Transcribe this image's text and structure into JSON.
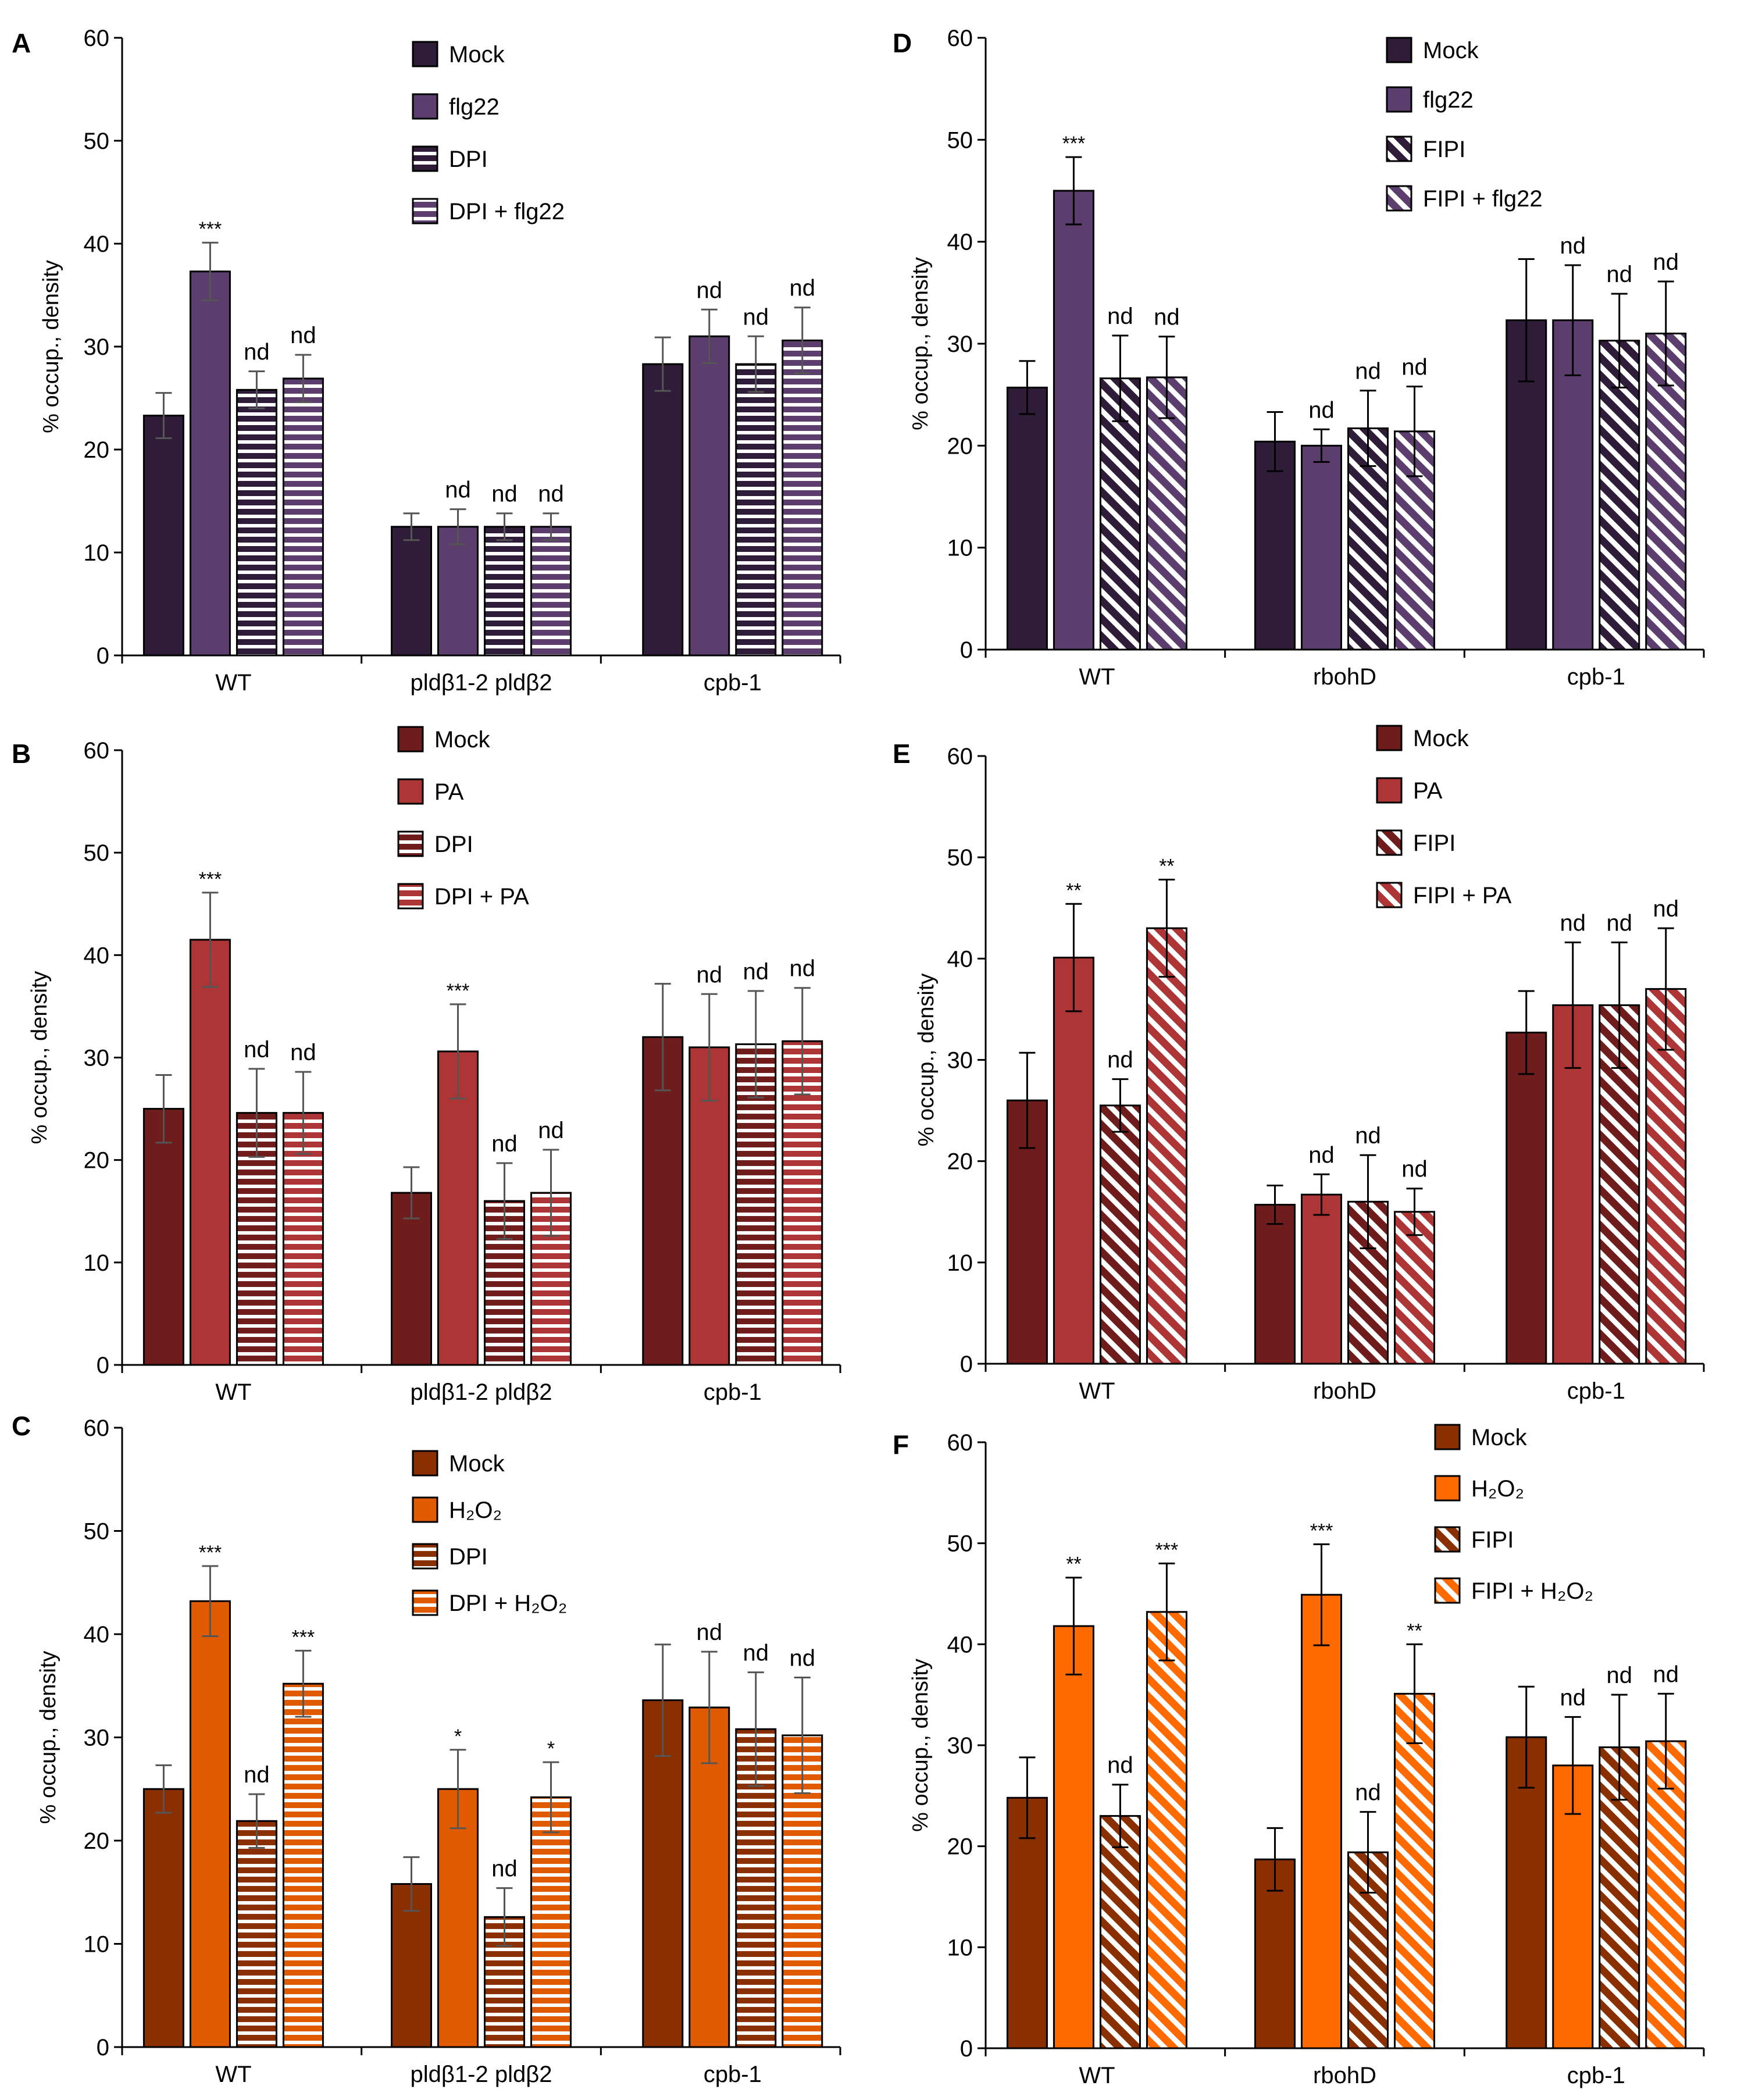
{
  "figure_caption_visible": false,
  "chart_data": [
    {
      "panel": "A",
      "type": "bar",
      "ylabel": "% occup., density",
      "ylim": [
        0,
        60
      ],
      "yticks": [
        0,
        10,
        20,
        30,
        40,
        50,
        60
      ],
      "categories": [
        "WT",
        "pldβ1-2 pldβ2",
        "cpb-1"
      ],
      "series": [
        {
          "name": "Mock",
          "values": [
            23.3,
            12.5,
            28.3
          ],
          "errors": [
            2.2,
            1.3,
            2.6
          ],
          "marks": [
            "",
            "",
            ""
          ],
          "color": "#2e1c38",
          "pattern": "solid"
        },
        {
          "name": "flg22",
          "values": [
            37.3,
            12.5,
            31.0
          ],
          "errors": [
            2.8,
            1.7,
            2.6
          ],
          "marks": [
            "***",
            "nd",
            "nd"
          ],
          "color": "#5b3d6e",
          "pattern": "solid"
        },
        {
          "name": "DPI",
          "values": [
            25.8,
            12.5,
            28.3
          ],
          "errors": [
            1.8,
            1.3,
            2.7
          ],
          "marks": [
            "nd",
            "nd",
            "nd"
          ],
          "color": "#2e1c38",
          "pattern": "hstripe"
        },
        {
          "name": "DPI + flg22",
          "values": [
            26.9,
            12.5,
            30.6
          ],
          "errors": [
            2.3,
            1.3,
            3.2
          ],
          "marks": [
            "nd",
            "nd",
            "nd"
          ],
          "color": "#5b3d6e",
          "pattern": "hstripe"
        }
      ]
    },
    {
      "panel": "B",
      "type": "bar",
      "ylabel": "% occup., density",
      "ylim": [
        0,
        60
      ],
      "yticks": [
        0,
        10,
        20,
        30,
        40,
        50,
        60
      ],
      "categories": [
        "WT",
        "pldβ1-2 pldβ2",
        "cpb-1"
      ],
      "series": [
        {
          "name": "Mock",
          "values": [
            25.0,
            16.8,
            32.0
          ],
          "errors": [
            3.3,
            2.5,
            5.2
          ],
          "marks": [
            "",
            "",
            ""
          ],
          "color": "#6e1c1c",
          "pattern": "solid"
        },
        {
          "name": "PA",
          "values": [
            41.5,
            30.6,
            31.0
          ],
          "errors": [
            4.6,
            4.6,
            5.2
          ],
          "marks": [
            "***",
            "***",
            "nd"
          ],
          "color": "#ad3535",
          "pattern": "solid"
        },
        {
          "name": "DPI",
          "values": [
            24.6,
            16.0,
            31.3
          ],
          "errors": [
            4.3,
            3.7,
            5.2
          ],
          "marks": [
            "nd",
            "nd",
            "nd"
          ],
          "color": "#6e1c1c",
          "pattern": "hstripe"
        },
        {
          "name": "DPI + PA",
          "values": [
            24.6,
            16.8,
            31.6
          ],
          "errors": [
            4.0,
            4.2,
            5.2
          ],
          "marks": [
            "nd",
            "nd",
            "nd"
          ],
          "color": "#ad3535",
          "pattern": "hstripe"
        }
      ]
    },
    {
      "panel": "C",
      "type": "bar",
      "ylabel": "% occup., density",
      "ylim": [
        0,
        60
      ],
      "yticks": [
        0,
        10,
        20,
        30,
        40,
        50,
        60
      ],
      "categories": [
        "WT",
        "pldβ1-2 pldβ2",
        "cpb-1"
      ],
      "series": [
        {
          "name": "Mock",
          "values": [
            25.0,
            15.8,
            33.6
          ],
          "errors": [
            2.3,
            2.6,
            5.4
          ],
          "marks": [
            "",
            "",
            ""
          ],
          "color": "#8a3000",
          "pattern": "solid"
        },
        {
          "name": "H₂O₂",
          "values": [
            43.2,
            25.0,
            32.9
          ],
          "errors": [
            3.4,
            3.8,
            5.4
          ],
          "marks": [
            "***",
            "*",
            "nd"
          ],
          "color": "#e05a00",
          "pattern": "solid"
        },
        {
          "name": "DPI",
          "values": [
            21.9,
            12.6,
            30.8
          ],
          "errors": [
            2.6,
            2.8,
            5.5
          ],
          "marks": [
            "nd",
            "nd",
            "nd"
          ],
          "color": "#8a3000",
          "pattern": "hstripe"
        },
        {
          "name": "DPI + H₂O₂",
          "values": [
            35.2,
            24.2,
            30.2
          ],
          "errors": [
            3.2,
            3.4,
            5.6
          ],
          "marks": [
            "***",
            "*",
            "nd"
          ],
          "color": "#e05a00",
          "pattern": "hstripe"
        }
      ]
    },
    {
      "panel": "D",
      "type": "bar",
      "ylabel": "% occup., density",
      "ylim": [
        0,
        60
      ],
      "yticks": [
        0,
        10,
        20,
        30,
        40,
        50,
        60
      ],
      "categories": [
        "WT",
        "rbohD",
        "cpb-1"
      ],
      "series": [
        {
          "name": "Mock",
          "values": [
            25.7,
            20.4,
            32.3
          ],
          "errors": [
            2.6,
            2.9,
            6.0
          ],
          "marks": [
            "",
            "",
            ""
          ],
          "color": "#2e1c38",
          "pattern": "solid"
        },
        {
          "name": "flg22",
          "values": [
            45.0,
            20.0,
            32.3
          ],
          "errors": [
            3.3,
            1.6,
            5.4
          ],
          "marks": [
            "***",
            "nd",
            "nd"
          ],
          "color": "#5b3d6e",
          "pattern": "solid"
        },
        {
          "name": "FIPI",
          "values": [
            26.6,
            21.7,
            30.3
          ],
          "errors": [
            4.2,
            3.7,
            4.6
          ],
          "marks": [
            "nd",
            "nd",
            "nd"
          ],
          "color": "#2e1c38",
          "pattern": "dstripe"
        },
        {
          "name": "FIPI + flg22",
          "values": [
            26.7,
            21.4,
            31.0
          ],
          "errors": [
            4.0,
            4.4,
            5.1
          ],
          "marks": [
            "nd",
            "nd",
            "nd"
          ],
          "color": "#5b3d6e",
          "pattern": "dstripe"
        }
      ]
    },
    {
      "panel": "E",
      "type": "bar",
      "ylabel": "% occup., density",
      "ylim": [
        0,
        60
      ],
      "yticks": [
        0,
        10,
        20,
        30,
        40,
        50,
        60
      ],
      "categories": [
        "WT",
        "rbohD",
        "cpb-1"
      ],
      "series": [
        {
          "name": "Mock",
          "values": [
            26.0,
            15.7,
            32.7
          ],
          "errors": [
            4.7,
            1.9,
            4.1
          ],
          "marks": [
            "",
            "",
            ""
          ],
          "color": "#6e1c1c",
          "pattern": "solid"
        },
        {
          "name": "PA",
          "values": [
            40.1,
            16.7,
            35.4
          ],
          "errors": [
            5.3,
            2.0,
            6.2
          ],
          "marks": [
            "**",
            "nd",
            "nd"
          ],
          "color": "#ad3535",
          "pattern": "solid"
        },
        {
          "name": "FIPI",
          "values": [
            25.5,
            16.0,
            35.4
          ],
          "errors": [
            2.6,
            4.6,
            6.2
          ],
          "marks": [
            "nd",
            "nd",
            "nd"
          ],
          "color": "#6e1c1c",
          "pattern": "dstripe"
        },
        {
          "name": "FIPI + PA",
          "values": [
            43.0,
            15.0,
            37.0
          ],
          "errors": [
            4.8,
            2.3,
            6.0
          ],
          "marks": [
            "**",
            "nd",
            "nd"
          ],
          "color": "#ad3535",
          "pattern": "dstripe"
        }
      ]
    },
    {
      "panel": "F",
      "type": "bar",
      "ylabel": "% occup., density",
      "ylim": [
        0,
        60
      ],
      "yticks": [
        0,
        10,
        20,
        30,
        40,
        50,
        60
      ],
      "categories": [
        "WT",
        "rbohD",
        "cpb-1"
      ],
      "series": [
        {
          "name": "Mock",
          "values": [
            24.8,
            18.7,
            30.8
          ],
          "errors": [
            4.0,
            3.1,
            5.0
          ],
          "marks": [
            "",
            "",
            ""
          ],
          "color": "#8a3000",
          "pattern": "solid"
        },
        {
          "name": "H₂O₂",
          "values": [
            41.8,
            44.9,
            28.0
          ],
          "errors": [
            4.8,
            5.0,
            4.8
          ],
          "marks": [
            "**",
            "***",
            "nd"
          ],
          "color": "#ff6a00",
          "pattern": "solid"
        },
        {
          "name": "FIPI",
          "values": [
            23.0,
            19.4,
            29.8
          ],
          "errors": [
            3.1,
            4.0,
            5.2
          ],
          "marks": [
            "nd",
            "nd",
            "nd"
          ],
          "color": "#8a3000",
          "pattern": "dstripe"
        },
        {
          "name": "FIPI + H₂O₂",
          "values": [
            43.2,
            35.1,
            30.4
          ],
          "errors": [
            4.8,
            4.9,
            4.7
          ],
          "marks": [
            "***",
            "**",
            "nd"
          ],
          "color": "#ff6a00",
          "pattern": "dstripe"
        }
      ]
    }
  ]
}
